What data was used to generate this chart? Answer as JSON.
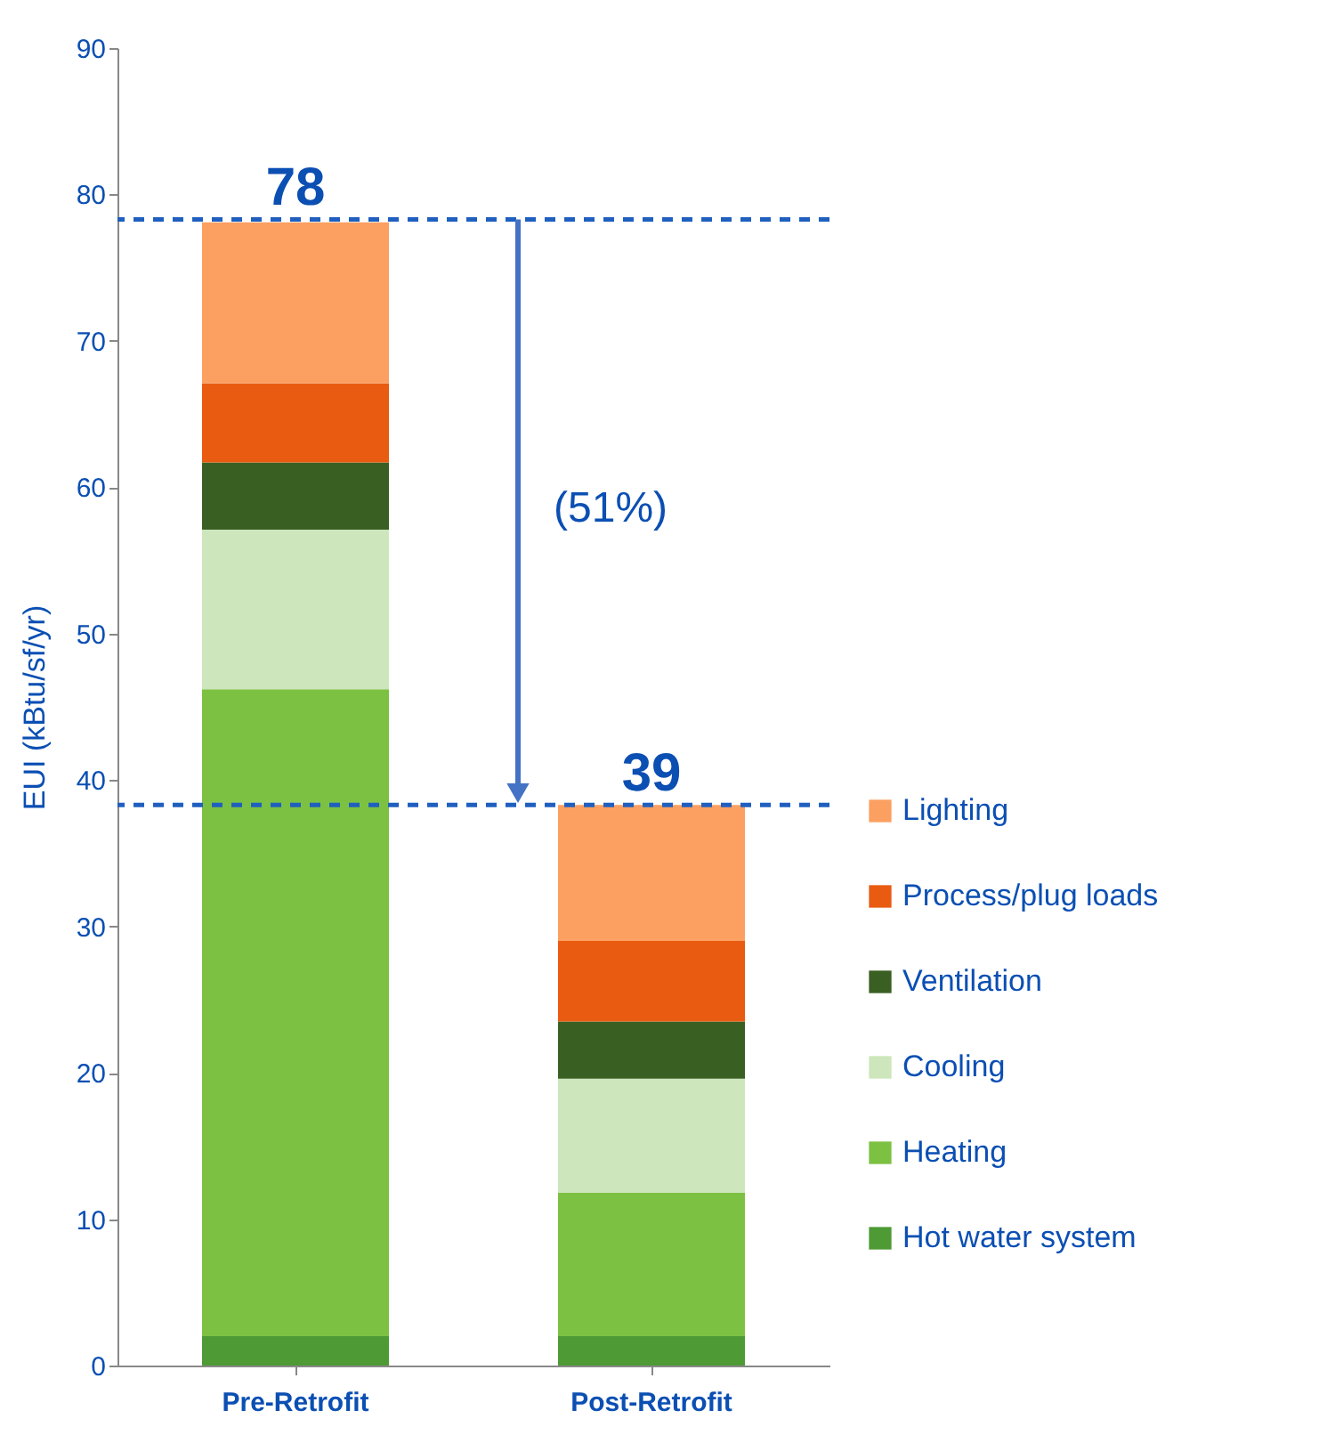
{
  "chart_data": {
    "type": "bar",
    "stacked": true,
    "ylabel": "EUI (kBtu/sf/yr)",
    "categories": [
      "Pre-Retrofit",
      "Post-Retrofit"
    ],
    "series": [
      {
        "name": "Hot water system",
        "color": "#4e9a35",
        "values": [
          2,
          2
        ]
      },
      {
        "name": "Heating",
        "color": "#7cc142",
        "values": [
          44.2,
          9.8
        ]
      },
      {
        "name": "Cooling",
        "color": "#cde6bb",
        "values": [
          10.9,
          7.8
        ]
      },
      {
        "name": "Ventilation",
        "color": "#3a5f22",
        "values": [
          4.6,
          3.9
        ]
      },
      {
        "name": "Process/plug loads",
        "color": "#e85b10",
        "values": [
          5.4,
          5.5
        ]
      },
      {
        "name": "Lighting",
        "color": "#fca062",
        "values": [
          11.0,
          9.3
        ]
      }
    ],
    "ylim": [
      0,
      90
    ],
    "yticks": [
      0,
      10,
      20,
      30,
      40,
      50,
      60,
      70,
      80,
      90
    ],
    "legend": "right",
    "grid": false,
    "ref_lines": [
      {
        "axis": "y",
        "value": 78.3,
        "color": "#1f5fbf",
        "line_style": "dashed"
      },
      {
        "axis": "y",
        "value": 38.3,
        "color": "#1f5fbf",
        "line_style": "dashed"
      }
    ],
    "annotations": [
      {
        "text": "78",
        "x": "Pre-Retrofit",
        "y": 78.3
      },
      {
        "text": "39",
        "x": "Post-Retrofit",
        "y": 38.3
      },
      "(51%)"
    ]
  }
}
